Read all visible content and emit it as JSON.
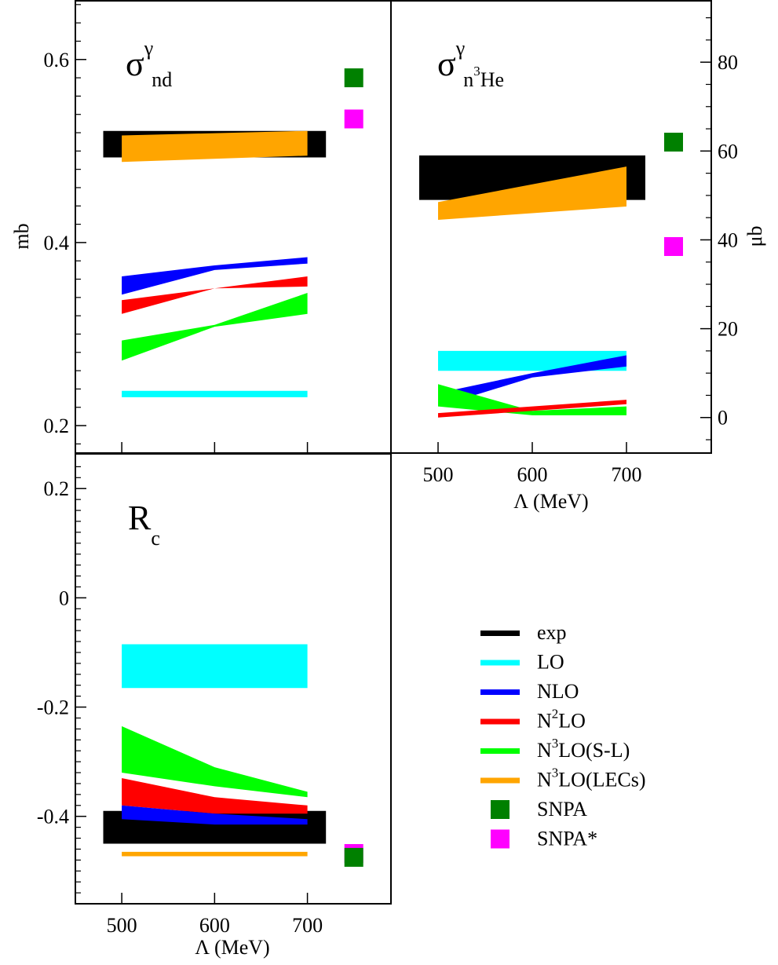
{
  "colors": {
    "exp": "#000000",
    "LO": "#00ffff",
    "NLO": "#0000ff",
    "N2LO": "#ff0000",
    "N3LO_SL": "#00ff00",
    "N3LO_LECs": "#ffa500",
    "SNPA": "#008000",
    "SNPA_star": "#ff00ff"
  },
  "panels": {
    "nd": {
      "label": {
        "main": "σ",
        "sup": "γ",
        "sub": "nd"
      },
      "ylabel": "mb"
    },
    "he3": {
      "label": {
        "main": "σ",
        "sup": "γ",
        "sub_pre": "n",
        "sub_sup": "3",
        "sub_post": "He"
      },
      "ylabel": "μb",
      "xlabel": "Λ (MeV)"
    },
    "rc": {
      "label": {
        "main": "R",
        "sub": "c"
      },
      "xlabel": "Λ (MeV)"
    }
  },
  "legend": {
    "items": [
      {
        "key": "exp",
        "kind": "line",
        "color": "#000000",
        "text": "exp"
      },
      {
        "key": "LO",
        "kind": "line",
        "color": "#00ffff",
        "text": "LO"
      },
      {
        "key": "NLO",
        "kind": "line",
        "color": "#0000ff",
        "text": "NLO"
      },
      {
        "key": "N2LO",
        "kind": "line",
        "color": "#ff0000",
        "pre": "N",
        "sup": "2",
        "post": "LO"
      },
      {
        "key": "N3LO_SL",
        "kind": "line",
        "color": "#00ff00",
        "pre": "N",
        "sup": "3",
        "post": "LO(S-L)"
      },
      {
        "key": "N3LO_LECs",
        "kind": "line",
        "color": "#ffa500",
        "pre": "N",
        "sup": "3",
        "post": "LO(LECs)"
      },
      {
        "key": "SNPA",
        "kind": "square",
        "color": "#008000",
        "text": "SNPA"
      },
      {
        "key": "SNPA_star",
        "kind": "square",
        "color": "#ff00ff",
        "text": "SNPA*"
      }
    ]
  },
  "chart_data": [
    {
      "id": "nd",
      "type": "area",
      "title": "σγnd",
      "xlabel": "",
      "ylabel": "mb",
      "xlim": [
        450,
        790
      ],
      "ylim": [
        0.17,
        0.665
      ],
      "xticks": [
        500,
        600,
        700
      ],
      "yticks": [
        0.2,
        0.4,
        0.6
      ],
      "yticks_minor": [
        0.18,
        0.22,
        0.24,
        0.26,
        0.28,
        0.3,
        0.32,
        0.34,
        0.36,
        0.38,
        0.42,
        0.44,
        0.46,
        0.48,
        0.5,
        0.52,
        0.54,
        0.56,
        0.58,
        0.62,
        0.64,
        0.66
      ],
      "xtick_labels_shown": false,
      "series": [
        {
          "name": "exp",
          "x": [
            480,
            720
          ],
          "upper": [
            0.522,
            0.522
          ],
          "lower": [
            0.493,
            0.493
          ]
        },
        {
          "name": "N3LO(LECs)",
          "x": [
            500,
            700
          ],
          "upper": [
            0.517,
            0.522
          ],
          "lower": [
            0.488,
            0.495
          ]
        },
        {
          "name": "NLO",
          "x": [
            500,
            600,
            700
          ],
          "upper": [
            0.363,
            0.375,
            0.384
          ],
          "lower": [
            0.343,
            0.37,
            0.377
          ]
        },
        {
          "name": "N2LO",
          "x": [
            500,
            600,
            700
          ],
          "upper": [
            0.337,
            0.35,
            0.363
          ],
          "lower": [
            0.322,
            0.35,
            0.352
          ]
        },
        {
          "name": "N3LO(S-L)",
          "x": [
            500,
            600,
            700
          ],
          "upper": [
            0.293,
            0.31,
            0.345
          ],
          "lower": [
            0.271,
            0.308,
            0.322
          ]
        },
        {
          "name": "LO",
          "x": [
            500,
            700
          ],
          "upper": [
            0.238,
            0.238
          ],
          "lower": [
            0.231,
            0.231
          ]
        }
      ],
      "points": [
        {
          "name": "SNPA",
          "x": 750,
          "y": 0.58
        },
        {
          "name": "SNPA*",
          "x": 750,
          "y": 0.535
        }
      ]
    },
    {
      "id": "he3",
      "type": "area",
      "title": "σγn3He",
      "xlabel": "Λ (MeV)",
      "ylabel": "μb",
      "xlim": [
        450,
        790
      ],
      "ylim": [
        -8,
        94
      ],
      "xticks": [
        500,
        600,
        700
      ],
      "yticks": [
        0,
        20,
        40,
        60,
        80
      ],
      "yticks_minor": [
        -5,
        5,
        10,
        15,
        25,
        30,
        35,
        45,
        50,
        55,
        65,
        70,
        75,
        85,
        90
      ],
      "series": [
        {
          "name": "exp",
          "x": [
            480,
            720
          ],
          "upper": [
            59,
            59
          ],
          "lower": [
            49,
            49
          ]
        },
        {
          "name": "N3LO(LECs)",
          "x": [
            500,
            600,
            700
          ],
          "upper": [
            48.5,
            52.5,
            56.5
          ],
          "lower": [
            44.5,
            46,
            47.5
          ]
        },
        {
          "name": "LO",
          "x": [
            500,
            700
          ],
          "upper": [
            15,
            15
          ],
          "lower": [
            10.5,
            10.5
          ]
        },
        {
          "name": "NLO",
          "x": [
            500,
            600,
            700
          ],
          "upper": [
            5.5,
            10,
            14
          ],
          "lower": [
            2.5,
            9,
            11.5
          ]
        },
        {
          "name": "N3LO(S-L)",
          "x": [
            500,
            600,
            700
          ],
          "upper": [
            7.5,
            1.5,
            2.5
          ],
          "lower": [
            2.5,
            0.5,
            0.5
          ]
        },
        {
          "name": "N2LO",
          "x": [
            500,
            600,
            700
          ],
          "upper": [
            1,
            2.5,
            4
          ],
          "lower": [
            0,
            1.5,
            3
          ]
        }
      ],
      "points": [
        {
          "name": "SNPA",
          "x": 750,
          "y": 62
        },
        {
          "name": "SNPA*",
          "x": 750,
          "y": 38.5
        }
      ]
    },
    {
      "id": "rc",
      "type": "area",
      "title": "Rc",
      "xlabel": "Λ (MeV)",
      "ylabel": "",
      "xlim": [
        450,
        790
      ],
      "ylim": [
        -0.56,
        0.265
      ],
      "xticks": [
        500,
        600,
        700
      ],
      "yticks": [
        -0.4,
        -0.2,
        0,
        0.2
      ],
      "yticks_minor": [
        -0.54,
        -0.52,
        -0.5,
        -0.48,
        -0.46,
        -0.44,
        -0.42,
        -0.38,
        -0.36,
        -0.34,
        -0.32,
        -0.3,
        -0.28,
        -0.26,
        -0.24,
        -0.22,
        -0.18,
        -0.16,
        -0.14,
        -0.12,
        -0.1,
        -0.08,
        -0.06,
        -0.04,
        -0.02,
        0.02,
        0.04,
        0.06,
        0.08,
        0.1,
        0.12,
        0.14,
        0.16,
        0.18,
        0.22,
        0.24
      ],
      "series": [
        {
          "name": "LO",
          "x": [
            500,
            700
          ],
          "upper": [
            -0.085,
            -0.085
          ],
          "lower": [
            -0.165,
            -0.165
          ]
        },
        {
          "name": "N3LO(S-L)",
          "x": [
            500,
            600,
            700
          ],
          "upper": [
            -0.235,
            -0.31,
            -0.355
          ],
          "lower": [
            -0.32,
            -0.345,
            -0.365
          ]
        },
        {
          "name": "exp",
          "x": [
            480,
            720
          ],
          "upper": [
            -0.39,
            -0.39
          ],
          "lower": [
            -0.45,
            -0.45
          ]
        },
        {
          "name": "N2LO",
          "x": [
            500,
            600,
            700
          ],
          "upper": [
            -0.33,
            -0.365,
            -0.38
          ],
          "lower": [
            -0.38,
            -0.395,
            -0.395
          ]
        },
        {
          "name": "NLO",
          "x": [
            500,
            600,
            700
          ],
          "upper": [
            -0.38,
            -0.395,
            -0.405
          ],
          "lower": [
            -0.405,
            -0.415,
            -0.415
          ]
        },
        {
          "name": "N3LO(LECs)",
          "x": [
            500,
            700
          ],
          "upper": [
            -0.465,
            -0.465
          ],
          "lower": [
            -0.473,
            -0.473
          ]
        }
      ],
      "points": [
        {
          "name": "SNPA*",
          "x": 750,
          "y": -0.468
        },
        {
          "name": "SNPA",
          "x": 750,
          "y": -0.475
        }
      ]
    }
  ]
}
